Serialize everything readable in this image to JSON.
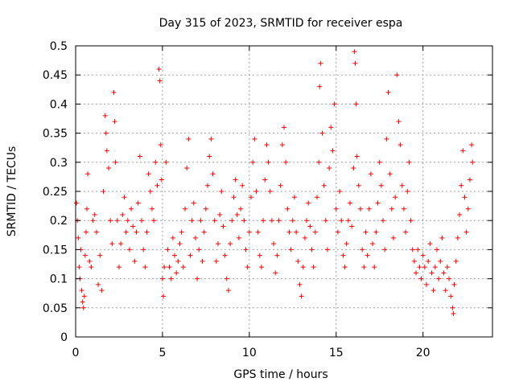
{
  "chart_data": {
    "type": "scatter",
    "title": "Day 315 of 2023, SRMTID for receiver espa",
    "xlabel": "GPS time / hours",
    "ylabel": "SRMTID / TECUs",
    "xlim": [
      0,
      24
    ],
    "ylim": [
      0,
      0.5
    ],
    "grid": true,
    "marker": "+",
    "color": "#ff0000",
    "x_ticks": [
      0,
      5,
      10,
      15,
      20
    ],
    "x_tick_labels": [
      "0",
      "5",
      "10",
      "15",
      "20"
    ],
    "y_ticks": [
      0,
      0.05,
      0.1,
      0.15,
      0.2,
      0.25,
      0.3,
      0.35,
      0.4,
      0.45,
      0.5
    ],
    "y_tick_labels": [
      "0",
      "0.05",
      "0.1",
      "0.15",
      "0.2",
      "0.25",
      "0.3",
      "0.35",
      "0.4",
      "0.45",
      "0.5"
    ],
    "series": [
      {
        "name": "SRMTID",
        "points": [
          [
            0.05,
            0.23
          ],
          [
            0.1,
            0.2
          ],
          [
            0.15,
            0.17
          ],
          [
            0.2,
            0.12
          ],
          [
            0.25,
            0.1
          ],
          [
            0.3,
            0.15
          ],
          [
            0.35,
            0.08
          ],
          [
            0.4,
            0.06
          ],
          [
            0.45,
            0.05
          ],
          [
            0.5,
            0.07
          ],
          [
            0.55,
            0.14
          ],
          [
            0.6,
            0.18
          ],
          [
            0.65,
            0.22
          ],
          [
            0.7,
            0.28
          ],
          [
            0.8,
            0.13
          ],
          [
            0.9,
            0.12
          ],
          [
            1.0,
            0.2
          ],
          [
            1.1,
            0.21
          ],
          [
            1.2,
            0.18
          ],
          [
            1.3,
            0.09
          ],
          [
            1.4,
            0.14
          ],
          [
            1.5,
            0.08
          ],
          [
            1.6,
            0.25
          ],
          [
            1.7,
            0.38
          ],
          [
            1.75,
            0.35
          ],
          [
            1.8,
            0.32
          ],
          [
            1.9,
            0.29
          ],
          [
            2.0,
            0.2
          ],
          [
            2.1,
            0.16
          ],
          [
            2.2,
            0.42
          ],
          [
            2.25,
            0.37
          ],
          [
            2.3,
            0.3
          ],
          [
            2.4,
            0.2
          ],
          [
            2.5,
            0.12
          ],
          [
            2.6,
            0.16
          ],
          [
            2.7,
            0.21
          ],
          [
            2.8,
            0.24
          ],
          [
            2.9,
            0.18
          ],
          [
            3.0,
            0.2
          ],
          [
            3.1,
            0.15
          ],
          [
            3.2,
            0.22
          ],
          [
            3.3,
            0.19
          ],
          [
            3.4,
            0.13
          ],
          [
            3.5,
            0.18
          ],
          [
            3.6,
            0.23
          ],
          [
            3.7,
            0.31
          ],
          [
            3.8,
            0.2
          ],
          [
            3.9,
            0.15
          ],
          [
            4.0,
            0.12
          ],
          [
            4.1,
            0.18
          ],
          [
            4.2,
            0.28
          ],
          [
            4.3,
            0.25
          ],
          [
            4.4,
            0.22
          ],
          [
            4.5,
            0.2
          ],
          [
            4.6,
            0.3
          ],
          [
            4.7,
            0.26
          ],
          [
            4.8,
            0.46
          ],
          [
            4.85,
            0.44
          ],
          [
            4.9,
            0.33
          ],
          [
            4.95,
            0.27
          ],
          [
            5.0,
            0.1
          ],
          [
            5.05,
            0.07
          ],
          [
            5.1,
            0.12
          ],
          [
            5.2,
            0.3
          ],
          [
            5.3,
            0.15
          ],
          [
            5.4,
            0.12
          ],
          [
            5.5,
            0.1
          ],
          [
            5.6,
            0.17
          ],
          [
            5.7,
            0.14
          ],
          [
            5.8,
            0.11
          ],
          [
            5.9,
            0.13
          ],
          [
            6.0,
            0.16
          ],
          [
            6.1,
            0.18
          ],
          [
            6.2,
            0.12
          ],
          [
            6.3,
            0.22
          ],
          [
            6.4,
            0.29
          ],
          [
            6.5,
            0.34
          ],
          [
            6.6,
            0.14
          ],
          [
            6.7,
            0.2
          ],
          [
            6.8,
            0.23
          ],
          [
            6.9,
            0.17
          ],
          [
            7.0,
            0.1
          ],
          [
            7.1,
            0.15
          ],
          [
            7.2,
            0.2
          ],
          [
            7.3,
            0.13
          ],
          [
            7.4,
            0.18
          ],
          [
            7.5,
            0.22
          ],
          [
            7.6,
            0.26
          ],
          [
            7.7,
            0.31
          ],
          [
            7.8,
            0.34
          ],
          [
            7.9,
            0.28
          ],
          [
            8.0,
            0.2
          ],
          [
            8.1,
            0.13
          ],
          [
            8.2,
            0.16
          ],
          [
            8.3,
            0.21
          ],
          [
            8.4,
            0.25
          ],
          [
            8.5,
            0.19
          ],
          [
            8.6,
            0.14
          ],
          [
            8.7,
            0.1
          ],
          [
            8.8,
            0.08
          ],
          [
            8.9,
            0.16
          ],
          [
            9.0,
            0.2
          ],
          [
            9.1,
            0.24
          ],
          [
            9.2,
            0.27
          ],
          [
            9.3,
            0.21
          ],
          [
            9.4,
            0.17
          ],
          [
            9.5,
            0.22
          ],
          [
            9.6,
            0.26
          ],
          [
            9.7,
            0.2
          ],
          [
            9.8,
            0.15
          ],
          [
            9.9,
            0.12
          ],
          [
            10.0,
            0.18
          ],
          [
            10.1,
            0.24
          ],
          [
            10.2,
            0.3
          ],
          [
            10.3,
            0.34
          ],
          [
            10.4,
            0.25
          ],
          [
            10.5,
            0.18
          ],
          [
            10.6,
            0.14
          ],
          [
            10.7,
            0.12
          ],
          [
            10.8,
            0.2
          ],
          [
            10.9,
            0.27
          ],
          [
            11.0,
            0.33
          ],
          [
            11.1,
            0.3
          ],
          [
            11.2,
            0.25
          ],
          [
            11.3,
            0.2
          ],
          [
            11.4,
            0.16
          ],
          [
            11.5,
            0.11
          ],
          [
            11.6,
            0.14
          ],
          [
            11.7,
            0.2
          ],
          [
            11.8,
            0.26
          ],
          [
            11.9,
            0.33
          ],
          [
            12.0,
            0.36
          ],
          [
            12.1,
            0.3
          ],
          [
            12.2,
            0.22
          ],
          [
            12.3,
            0.18
          ],
          [
            12.4,
            0.15
          ],
          [
            12.5,
            0.2
          ],
          [
            12.6,
            0.24
          ],
          [
            12.7,
            0.18
          ],
          [
            12.8,
            0.13
          ],
          [
            12.9,
            0.09
          ],
          [
            13.0,
            0.07
          ],
          [
            13.1,
            0.12
          ],
          [
            13.2,
            0.17
          ],
          [
            13.3,
            0.2
          ],
          [
            13.4,
            0.23
          ],
          [
            13.5,
            0.19
          ],
          [
            13.6,
            0.15
          ],
          [
            13.7,
            0.12
          ],
          [
            13.8,
            0.18
          ],
          [
            13.9,
            0.24
          ],
          [
            14.0,
            0.3
          ],
          [
            14.05,
            0.43
          ],
          [
            14.1,
            0.47
          ],
          [
            14.2,
            0.35
          ],
          [
            14.3,
            0.26
          ],
          [
            14.4,
            0.2
          ],
          [
            14.5,
            0.15
          ],
          [
            14.6,
            0.29
          ],
          [
            14.7,
            0.36
          ],
          [
            14.8,
            0.32
          ],
          [
            14.9,
            0.4
          ],
          [
            15.0,
            0.22
          ],
          [
            15.1,
            0.18
          ],
          [
            15.2,
            0.25
          ],
          [
            15.3,
            0.2
          ],
          [
            15.4,
            0.14
          ],
          [
            15.5,
            0.12
          ],
          [
            15.6,
            0.16
          ],
          [
            15.7,
            0.2
          ],
          [
            15.8,
            0.23
          ],
          [
            15.9,
            0.19
          ],
          [
            16.0,
            0.29
          ],
          [
            16.05,
            0.49
          ],
          [
            16.1,
            0.47
          ],
          [
            16.15,
            0.4
          ],
          [
            16.2,
            0.31
          ],
          [
            16.3,
            0.26
          ],
          [
            16.4,
            0.22
          ],
          [
            16.5,
            0.15
          ],
          [
            16.6,
            0.12
          ],
          [
            16.7,
            0.18
          ],
          [
            16.8,
            0.14
          ],
          [
            16.9,
            0.22
          ],
          [
            17.0,
            0.28
          ],
          [
            17.1,
            0.16
          ],
          [
            17.2,
            0.12
          ],
          [
            17.3,
            0.18
          ],
          [
            17.4,
            0.23
          ],
          [
            17.5,
            0.3
          ],
          [
            17.6,
            0.26
          ],
          [
            17.7,
            0.2
          ],
          [
            17.8,
            0.15
          ],
          [
            17.9,
            0.34
          ],
          [
            18.0,
            0.42
          ],
          [
            18.1,
            0.28
          ],
          [
            18.2,
            0.22
          ],
          [
            18.3,
            0.17
          ],
          [
            18.4,
            0.24
          ],
          [
            18.5,
            0.45
          ],
          [
            18.6,
            0.37
          ],
          [
            18.7,
            0.33
          ],
          [
            18.8,
            0.26
          ],
          [
            18.9,
            0.22
          ],
          [
            19.0,
            0.18
          ],
          [
            19.1,
            0.25
          ],
          [
            19.2,
            0.3
          ],
          [
            19.3,
            0.2
          ],
          [
            19.4,
            0.15
          ],
          [
            19.5,
            0.13
          ],
          [
            19.6,
            0.11
          ],
          [
            19.7,
            0.15
          ],
          [
            19.8,
            0.12
          ],
          [
            19.9,
            0.1
          ],
          [
            20.0,
            0.14
          ],
          [
            20.1,
            0.12
          ],
          [
            20.2,
            0.09
          ],
          [
            20.3,
            0.13
          ],
          [
            20.4,
            0.16
          ],
          [
            20.5,
            0.11
          ],
          [
            20.6,
            0.08
          ],
          [
            20.7,
            0.12
          ],
          [
            20.8,
            0.15
          ],
          [
            20.9,
            0.1
          ],
          [
            21.0,
            0.13
          ],
          [
            21.1,
            0.17
          ],
          [
            21.2,
            0.11
          ],
          [
            21.3,
            0.08
          ],
          [
            21.4,
            0.12
          ],
          [
            21.5,
            0.1
          ],
          [
            21.6,
            0.07
          ],
          [
            21.7,
            0.05
          ],
          [
            21.75,
            0.04
          ],
          [
            21.8,
            0.09
          ],
          [
            21.9,
            0.13
          ],
          [
            22.0,
            0.17
          ],
          [
            22.1,
            0.21
          ],
          [
            22.2,
            0.26
          ],
          [
            22.3,
            0.32
          ],
          [
            22.4,
            0.24
          ],
          [
            22.5,
            0.18
          ],
          [
            22.6,
            0.22
          ],
          [
            22.7,
            0.27
          ],
          [
            22.8,
            0.33
          ],
          [
            22.85,
            0.3
          ]
        ]
      }
    ]
  }
}
